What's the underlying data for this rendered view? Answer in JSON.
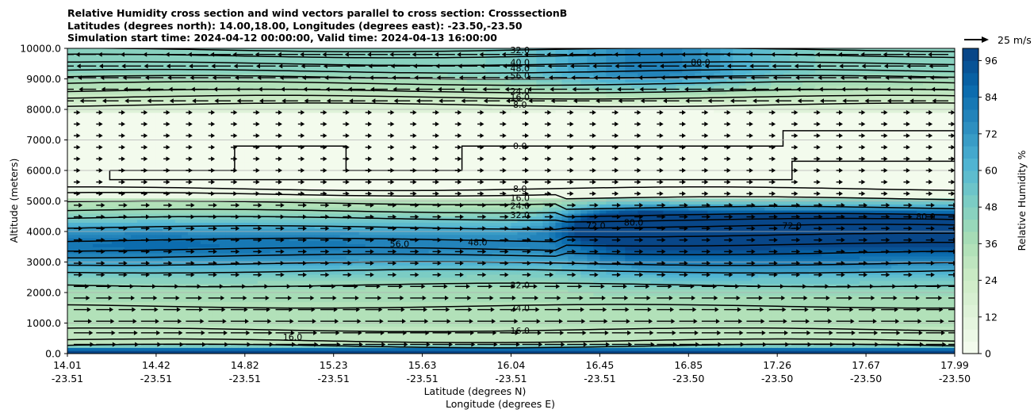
{
  "title_lines": [
    "Relative Humidity cross section and wind vectors parallel to cross section: CrosssectionB",
    "Latitudes (degrees north): 14.00,18.00, Longitudes (degrees east): -23.50,-23.50",
    "Simulation start time: 2024-04-12 00:00:00, Valid time: 2024-04-13 16:00:00"
  ],
  "chart_data": {
    "type": "heatmap",
    "ylabel": "Altitude (meters)",
    "xlabel_lat": "Latitude (degrees N)",
    "xlabel_lon": "Longitude (degrees E)",
    "ylim": [
      0,
      10000
    ],
    "y_ticks": [
      "0.0",
      "1000.0",
      "2000.0",
      "3000.0",
      "4000.0",
      "5000.0",
      "6000.0",
      "7000.0",
      "8000.0",
      "9000.0",
      "10000.0"
    ],
    "x_ticks_lat": [
      "14.01",
      "14.42",
      "14.82",
      "15.23",
      "15.63",
      "16.04",
      "16.45",
      "16.85",
      "17.26",
      "17.67",
      "17.99"
    ],
    "x_ticks_lon": [
      "-23.51",
      "-23.51",
      "-23.51",
      "-23.51",
      "-23.51",
      "-23.51",
      "-23.51",
      "-23.50",
      "-23.50",
      "-23.50",
      "-23.50"
    ],
    "grid": "horizontal",
    "colorbar": {
      "label": "Relative Humidity %",
      "min": 0,
      "max": 100,
      "step": 4,
      "ticks": [
        "0",
        "12",
        "24",
        "36",
        "48",
        "60",
        "72",
        "84",
        "96"
      ]
    },
    "quiver_key": "25 m/s",
    "contour_labels": [
      {
        "text": "0.0",
        "lat": 16.04,
        "alt": 6800
      },
      {
        "text": "8.0",
        "lat": 16.04,
        "alt": 8150
      },
      {
        "text": "16.0",
        "lat": 16.04,
        "alt": 8400
      },
      {
        "text": "24.0",
        "lat": 16.04,
        "alt": 8600
      },
      {
        "text": "56.0",
        "lat": 16.04,
        "alt": 9100
      },
      {
        "text": "48.0",
        "lat": 16.04,
        "alt": 9350
      },
      {
        "text": "40.0",
        "lat": 16.04,
        "alt": 9550
      },
      {
        "text": "32.0",
        "lat": 16.04,
        "alt": 9950
      },
      {
        "text": "80.0",
        "lat": 16.85,
        "alt": 9550
      },
      {
        "text": "8.0",
        "lat": 16.04,
        "alt": 5400
      },
      {
        "text": "16.0",
        "lat": 16.04,
        "alt": 5100
      },
      {
        "text": "24.0",
        "lat": 16.04,
        "alt": 4850
      },
      {
        "text": "32.0",
        "lat": 16.04,
        "alt": 4550
      },
      {
        "text": "56.0",
        "lat": 15.5,
        "alt": 3600
      },
      {
        "text": "48.0",
        "lat": 15.85,
        "alt": 3650
      },
      {
        "text": "72.0",
        "lat": 16.38,
        "alt": 4200
      },
      {
        "text": "80.0",
        "lat": 16.55,
        "alt": 4300
      },
      {
        "text": "72.0",
        "lat": 17.26,
        "alt": 4200
      },
      {
        "text": "80.0",
        "lat": 17.86,
        "alt": 4500
      },
      {
        "text": "32.0",
        "lat": 16.04,
        "alt": 2250
      },
      {
        "text": "24.0",
        "lat": 16.04,
        "alt": 1500
      },
      {
        "text": "16.0",
        "lat": 16.04,
        "alt": 750
      },
      {
        "text": "16.0",
        "lat": 15.02,
        "alt": 550
      }
    ]
  }
}
